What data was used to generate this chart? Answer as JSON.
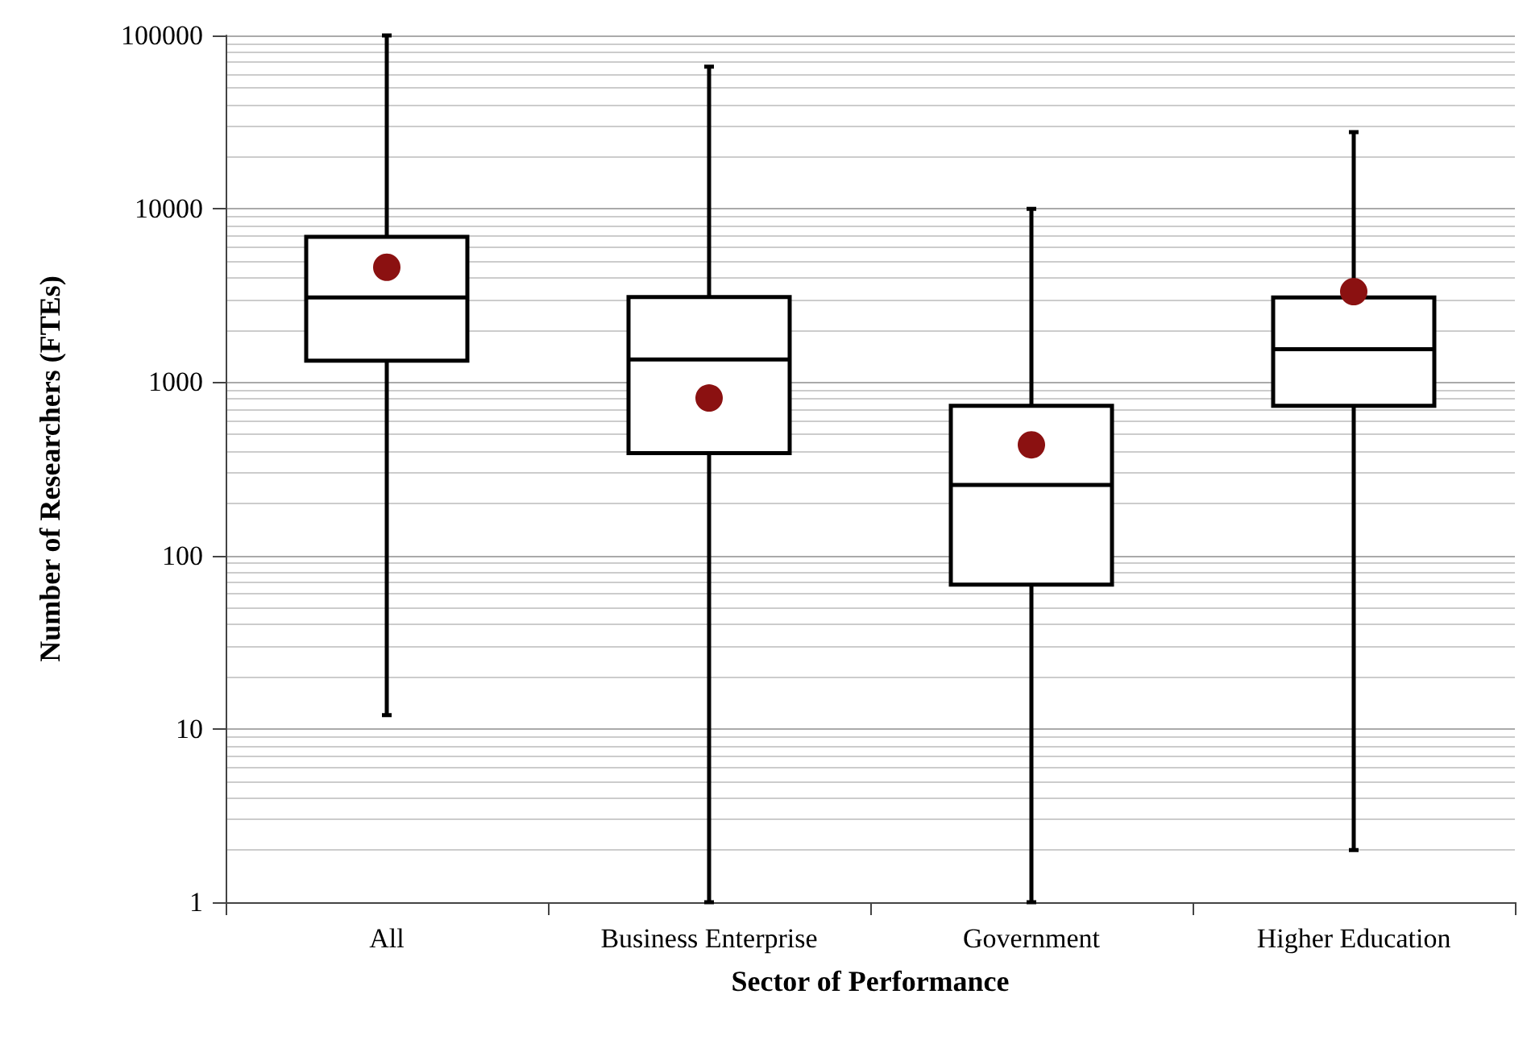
{
  "chart_data": {
    "type": "box",
    "xlabel": "Sector of Performance",
    "ylabel": "Number of Researchers (FTEs)",
    "categories": [
      "All",
      "Business Enterprise",
      "Government",
      "Higher Education"
    ],
    "boxes": [
      {
        "low": 12,
        "q1": 1330,
        "median": 3080,
        "q3": 6900,
        "high": 100000,
        "mean": 4600
      },
      {
        "low": 1,
        "q1": 390,
        "median": 1350,
        "q3": 3100,
        "high": 66000,
        "mean": 810
      },
      {
        "low": 1,
        "q1": 68,
        "median": 255,
        "q3": 730,
        "high": 10000,
        "mean": 435
      },
      {
        "low": 2,
        "q1": 730,
        "median": 1550,
        "q3": 3080,
        "high": 27700,
        "mean": 3330
      }
    ],
    "ylim": [
      1,
      100000
    ],
    "yticks": [
      1,
      10,
      100,
      1000,
      10000,
      100000
    ],
    "log": true,
    "grid": "y"
  }
}
